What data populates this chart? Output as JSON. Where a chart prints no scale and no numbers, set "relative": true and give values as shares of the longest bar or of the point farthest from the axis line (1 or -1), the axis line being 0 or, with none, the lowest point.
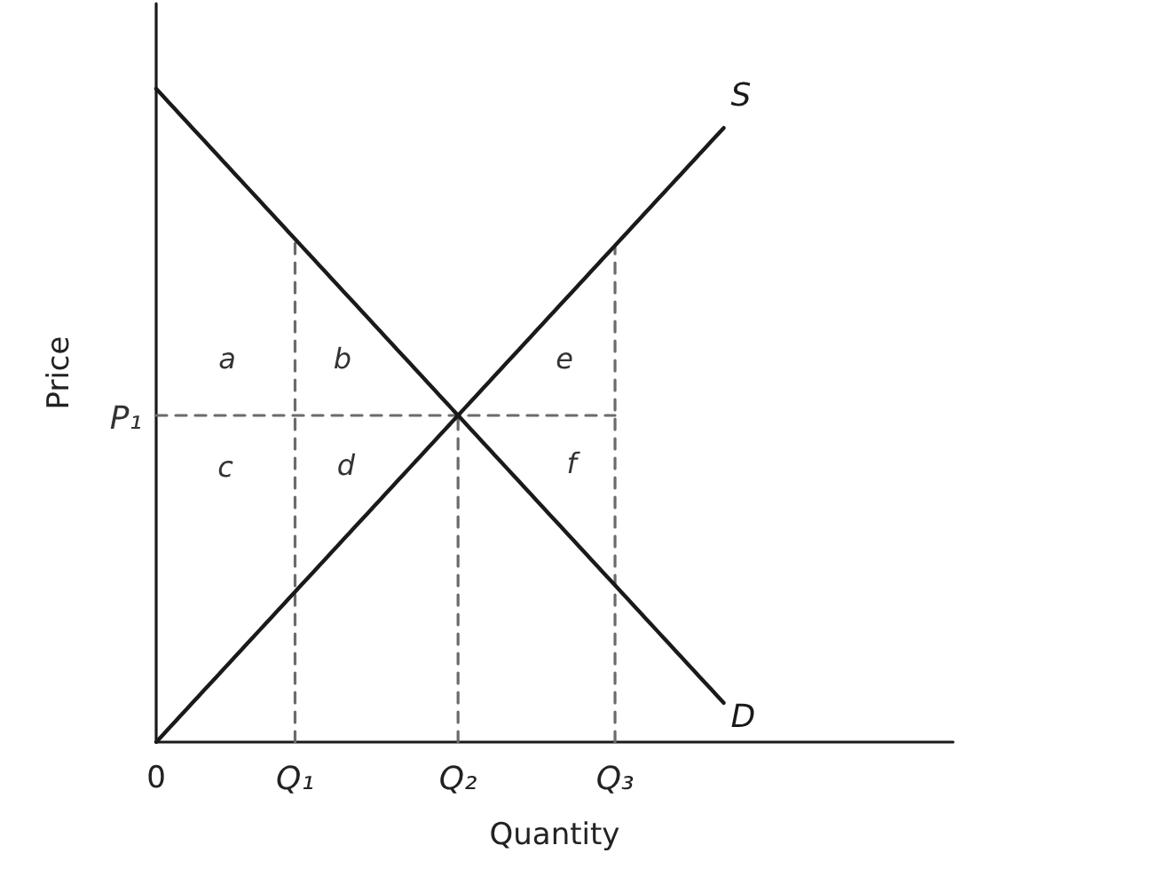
{
  "chart_data": {
    "type": "line",
    "xlabel": "Quantity",
    "ylabel": "Price",
    "relative": true,
    "marker": "none",
    "line_style": "solid",
    "categories": [
      "0",
      null,
      null,
      null,
      null,
      null,
      null,
      null,
      null,
      null,
      null,
      null,
      null,
      null,
      null,
      null,
      null,
      null,
      null,
      null,
      null,
      null,
      null,
      "Q₁",
      null,
      null,
      null,
      null,
      null,
      null,
      null,
      null,
      null,
      null,
      null,
      null,
      null,
      null,
      null,
      null,
      null,
      null,
      null,
      null,
      null,
      null,
      null,
      null,
      null,
      null,
      "Q₂",
      null,
      null,
      null,
      null,
      null,
      null,
      null,
      null,
      null,
      null,
      null,
      null,
      null,
      null,
      null,
      null,
      null,
      null,
      null,
      null,
      null,
      null,
      null,
      null,
      null,
      "Q₃",
      null,
      null,
      null,
      null,
      null,
      null,
      null,
      null,
      null,
      null,
      null,
      null,
      null,
      null,
      null,
      null,
      null,
      null,
      null,
      null,
      null,
      null,
      null,
      null,
      null,
      null,
      null,
      null,
      null,
      null,
      null,
      null,
      null,
      null,
      null,
      null,
      null,
      null,
      null,
      null,
      null,
      null,
      null,
      null,
      null,
      null,
      null,
      null,
      null,
      null,
      null,
      null,
      null,
      null,
      null,
      null
    ],
    "series": [
      {
        "name": "D",
        "color": "#1a1a1a",
        "values": [
          1,
          0.99,
          0.98,
          0.97,
          0.96,
          0.95,
          0.94,
          0.93,
          0.92,
          0.91,
          0.9,
          0.89,
          0.88,
          0.87,
          0.86,
          0.85,
          0.84,
          0.83,
          0.82,
          0.81,
          0.8,
          0.79,
          0.78,
          0.77,
          0.76,
          0.75,
          0.74,
          0.73,
          0.72,
          0.71,
          0.7,
          0.69,
          0.68,
          0.67,
          0.66,
          0.65,
          0.64,
          0.63,
          0.62,
          0.61,
          0.6,
          0.59,
          0.58,
          0.57,
          0.56,
          0.55,
          0.54,
          0.53,
          0.52,
          0.51,
          0.5,
          0.49,
          0.48,
          0.47,
          0.46,
          0.45,
          0.44,
          0.43,
          0.42,
          0.41,
          0.4,
          0.39,
          0.38,
          0.37,
          0.36,
          0.35,
          0.34,
          0.33,
          0.32,
          0.31,
          0.3,
          0.29,
          0.28,
          0.27,
          0.26,
          0.25,
          0.24,
          0.23,
          0.22,
          0.21,
          0.2,
          0.19,
          0.18,
          0.17,
          0.16,
          0.15,
          0.14,
          0.13,
          0.12,
          0.11,
          0.1,
          0.09,
          0.08,
          0.07,
          0.06,
          null,
          null,
          null,
          null,
          null,
          null,
          null,
          null,
          null,
          null,
          null,
          null,
          null,
          null,
          null,
          null,
          null,
          null,
          null,
          null,
          null,
          null,
          null,
          null,
          null,
          null,
          null,
          null,
          null,
          null,
          null,
          null,
          null,
          null,
          null,
          null,
          null,
          null
        ]
      },
      {
        "name": "S",
        "color": "#1a1a1a",
        "values": [
          0,
          0.01,
          0.02,
          0.03,
          0.04,
          0.05,
          0.06,
          0.07,
          0.08,
          0.09,
          0.1,
          0.11,
          0.12,
          0.13,
          0.14,
          0.15,
          0.16,
          0.17,
          0.18,
          0.19,
          0.2,
          0.21,
          0.22,
          0.23,
          0.24,
          0.25,
          0.26,
          0.27,
          0.28,
          0.29,
          0.3,
          0.31,
          0.32,
          0.33,
          0.34,
          0.35,
          0.36,
          0.37,
          0.38,
          0.39,
          0.4,
          0.41,
          0.42,
          0.43,
          0.44,
          0.45,
          0.46,
          0.47,
          0.48,
          0.49,
          0.5,
          0.51,
          0.52,
          0.53,
          0.54,
          0.55,
          0.56,
          0.57,
          0.58,
          0.59,
          0.6,
          0.61,
          0.62,
          0.63,
          0.64,
          0.65,
          0.66,
          0.67,
          0.68,
          0.69,
          0.7,
          0.71,
          0.72,
          0.73,
          0.74,
          0.75,
          0.76,
          0.77,
          0.78,
          0.79,
          0.8,
          0.81,
          0.82,
          0.83,
          0.84,
          0.85,
          0.86,
          0.87,
          0.88,
          0.89,
          0.9,
          0.91,
          0.92,
          0.93,
          0.94,
          null,
          null,
          null,
          null,
          null,
          null,
          null,
          null,
          null,
          null,
          null,
          null,
          null,
          null,
          null,
          null,
          null,
          null,
          null,
          null,
          null,
          null,
          null,
          null,
          null,
          null,
          null,
          null,
          null,
          null,
          null,
          null,
          null,
          null,
          null,
          null,
          null,
          null
        ]
      },
      {
        "color": "#6b6b6b",
        "x": [
          "0",
          "Q₃"
        ],
        "values": [
          0.5,
          0.5
        ],
        "line_style": "dashed"
      },
      {
        "color": "#6b6b6b",
        "x": [
          "Q₁",
          "Q₁"
        ],
        "values": [
          0,
          0.77
        ],
        "line_style": "dashed"
      },
      {
        "color": "#6b6b6b",
        "x": [
          "Q₂",
          "Q₂"
        ],
        "values": [
          0,
          0.5
        ],
        "line_style": "dashed"
      },
      {
        "color": "#6b6b6b",
        "x": [
          "Q₃",
          "Q₃"
        ],
        "values": [
          0,
          0.76
        ],
        "line_style": "dashed"
      }
    ],
    "annotations": [
      "P₁",
      "a",
      "b",
      "c",
      "d",
      "e",
      "f"
    ]
  }
}
